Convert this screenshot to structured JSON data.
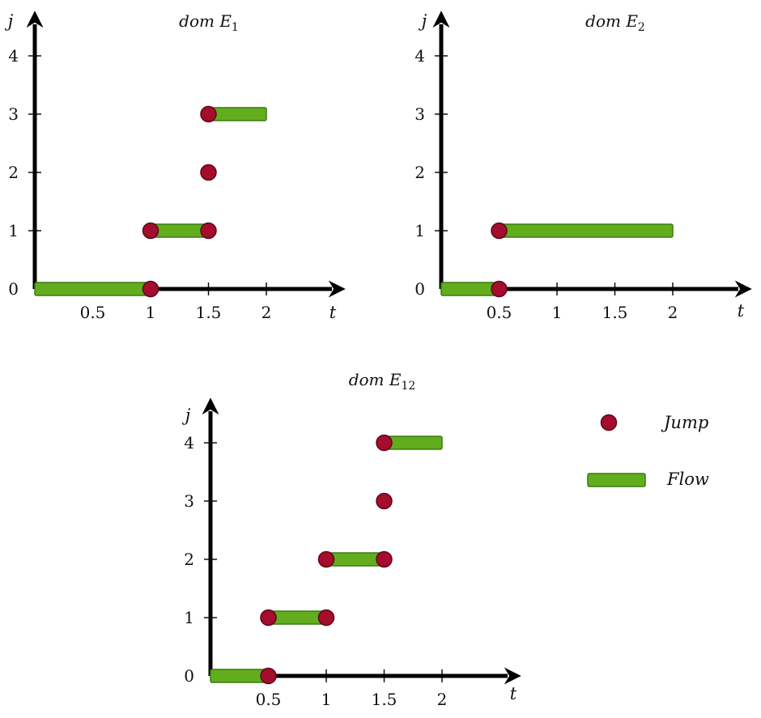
{
  "chart_data": [
    {
      "id": "E1",
      "type": "hybrid-time-domain",
      "title": "dom E",
      "title_sub": "1",
      "xlabel": "t",
      "ylabel": "j",
      "xticks": [
        {
          "value": 0.5,
          "label": "0.5"
        },
        {
          "value": 1,
          "label": "1"
        },
        {
          "value": 1.5,
          "label": "1.5"
        },
        {
          "value": 2,
          "label": "2"
        }
      ],
      "yticks": [
        {
          "value": 0,
          "label": "0"
        },
        {
          "value": 1,
          "label": "1"
        },
        {
          "value": 2,
          "label": "2"
        },
        {
          "value": 3,
          "label": "3"
        },
        {
          "value": 4,
          "label": "4"
        }
      ],
      "xlim": [
        0,
        2.6
      ],
      "ylim": [
        0,
        4.6
      ],
      "flows": [
        {
          "j": 0,
          "t_start": 0,
          "t_end": 1
        },
        {
          "j": 1,
          "t_start": 1,
          "t_end": 1.5
        },
        {
          "j": 3,
          "t_start": 1.5,
          "t_end": 2
        }
      ],
      "jumps": [
        {
          "t": 1,
          "j": 0
        },
        {
          "t": 1,
          "j": 1
        },
        {
          "t": 1.5,
          "j": 1
        },
        {
          "t": 1.5,
          "j": 2
        },
        {
          "t": 1.5,
          "j": 3
        }
      ]
    },
    {
      "id": "E2",
      "type": "hybrid-time-domain",
      "title": "dom E",
      "title_sub": "2",
      "xlabel": "t",
      "ylabel": "j",
      "xticks": [
        {
          "value": 0.5,
          "label": "0.5"
        },
        {
          "value": 1,
          "label": "1"
        },
        {
          "value": 1.5,
          "label": "1.5"
        },
        {
          "value": 2,
          "label": "2"
        }
      ],
      "yticks": [
        {
          "value": 0,
          "label": "0"
        },
        {
          "value": 1,
          "label": "1"
        },
        {
          "value": 2,
          "label": "2"
        },
        {
          "value": 3,
          "label": "3"
        },
        {
          "value": 4,
          "label": "4"
        }
      ],
      "xlim": [
        0,
        2.6
      ],
      "ylim": [
        0,
        4.6
      ],
      "flows": [
        {
          "j": 0,
          "t_start": 0,
          "t_end": 0.5
        },
        {
          "j": 1,
          "t_start": 0.5,
          "t_end": 2
        }
      ],
      "jumps": [
        {
          "t": 0.5,
          "j": 0
        },
        {
          "t": 0.5,
          "j": 1
        }
      ]
    },
    {
      "id": "E12",
      "type": "hybrid-time-domain",
      "title": "dom E",
      "title_sub": "12",
      "xlabel": "t",
      "ylabel": "j",
      "xticks": [
        {
          "value": 0.5,
          "label": "0.5"
        },
        {
          "value": 1,
          "label": "1"
        },
        {
          "value": 1.5,
          "label": "1.5"
        },
        {
          "value": 2,
          "label": "2"
        }
      ],
      "yticks": [
        {
          "value": 0,
          "label": "0"
        },
        {
          "value": 1,
          "label": "1"
        },
        {
          "value": 2,
          "label": "2"
        },
        {
          "value": 3,
          "label": "3"
        },
        {
          "value": 4,
          "label": "4"
        }
      ],
      "xlim": [
        0,
        2.6
      ],
      "ylim": [
        0,
        4.6
      ],
      "flows": [
        {
          "j": 0,
          "t_start": 0,
          "t_end": 0.5
        },
        {
          "j": 1,
          "t_start": 0.5,
          "t_end": 1
        },
        {
          "j": 2,
          "t_start": 1,
          "t_end": 1.5
        },
        {
          "j": 4,
          "t_start": 1.5,
          "t_end": 2
        }
      ],
      "jumps": [
        {
          "t": 0.5,
          "j": 0
        },
        {
          "t": 0.5,
          "j": 1
        },
        {
          "t": 1,
          "j": 1
        },
        {
          "t": 1,
          "j": 2
        },
        {
          "t": 1.5,
          "j": 2
        },
        {
          "t": 1.5,
          "j": 3
        },
        {
          "t": 1.5,
          "j": 4
        }
      ]
    }
  ],
  "legend": {
    "jump_label": "Jump",
    "flow_label": "Flow"
  },
  "colors": {
    "jump_fill": "#a50d2c",
    "jump_stroke": "#5e0718",
    "flow_fill": "#62ad1e",
    "flow_stroke": "#3a7a10",
    "axis": "#000000"
  }
}
